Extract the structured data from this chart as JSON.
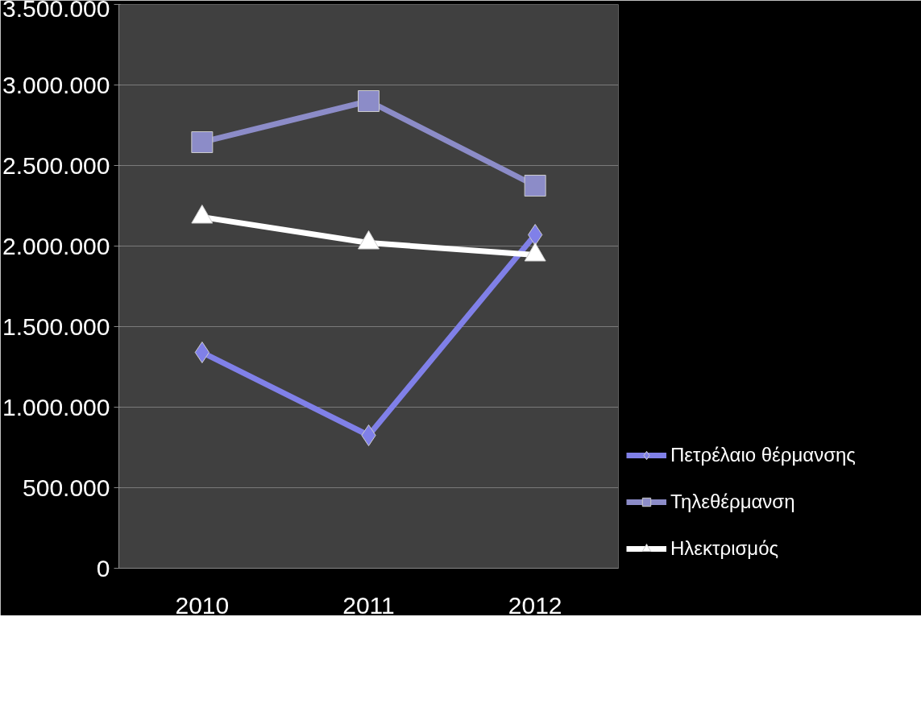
{
  "chart_data": {
    "type": "line",
    "categories": [
      "2010",
      "2011",
      "2012"
    ],
    "series": [
      {
        "name": "Πετρέλαιο θέρμανσης",
        "color": "#8080e8",
        "marker": "diamond",
        "values": [
          1340000,
          825000,
          2070000
        ]
      },
      {
        "name": "Τηλεθέρμανση",
        "color": "#8c8cc8",
        "marker": "square",
        "values": [
          2645000,
          2900000,
          2375000
        ]
      },
      {
        "name": "Ηλεκτρισμός",
        "color": "#ffffff",
        "marker": "triangle",
        "values": [
          2180000,
          2020000,
          1945000
        ]
      }
    ],
    "ylim": [
      0,
      3500000
    ],
    "yticks": [
      {
        "value": 0,
        "label": "0"
      },
      {
        "value": 500000,
        "label": "500.000"
      },
      {
        "value": 1000000,
        "label": "1.000.000"
      },
      {
        "value": 1500000,
        "label": "1.500.000"
      },
      {
        "value": 2000000,
        "label": "2.000.000"
      },
      {
        "value": 2500000,
        "label": "2.500.000"
      },
      {
        "value": 3000000,
        "label": "3.000.000"
      },
      {
        "value": 3500000,
        "label": "3.500.000"
      }
    ],
    "grid": "y",
    "legend": "right",
    "line_style": "solid"
  }
}
